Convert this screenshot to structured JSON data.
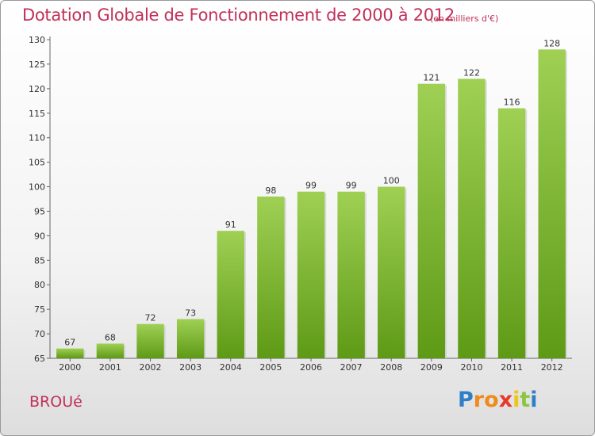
{
  "chart_data": {
    "type": "bar",
    "title": "Dotation Globale de Fonctionnement de 2000 à 2012",
    "subtitle": "(en milliers d'€)",
    "categories": [
      "2000",
      "2001",
      "2002",
      "2003",
      "2004",
      "2005",
      "2006",
      "2007",
      "2008",
      "2009",
      "2010",
      "2011",
      "2012"
    ],
    "values": [
      67,
      68,
      72,
      73,
      91,
      98,
      99,
      99,
      100,
      121,
      122,
      116,
      128
    ],
    "value_labels": [
      "67",
      "68",
      "72",
      "73",
      "91",
      "98",
      "99",
      "99",
      "100",
      "121",
      "122",
      "116",
      "128"
    ],
    "yticks": [
      "65",
      "70",
      "75",
      "80",
      "85",
      "90",
      "95",
      "100",
      "105",
      "110",
      "115",
      "120",
      "125",
      "130"
    ],
    "ylim": [
      65,
      130
    ],
    "grid": false,
    "colors": {
      "bar_top": "#9fd054",
      "bar_bottom": "#5e9a16",
      "title": "#c0305a"
    }
  },
  "footer": {
    "commune": "BROUé",
    "logo": {
      "letters": [
        "P",
        "r",
        "o",
        "x",
        "i",
        "t",
        "i"
      ],
      "colors": [
        "#2f7fc8",
        "#f08a1c",
        "#f08a1c",
        "#e63a2a",
        "#f0c419",
        "#8cc63f",
        "#2f7fc8"
      ]
    }
  }
}
